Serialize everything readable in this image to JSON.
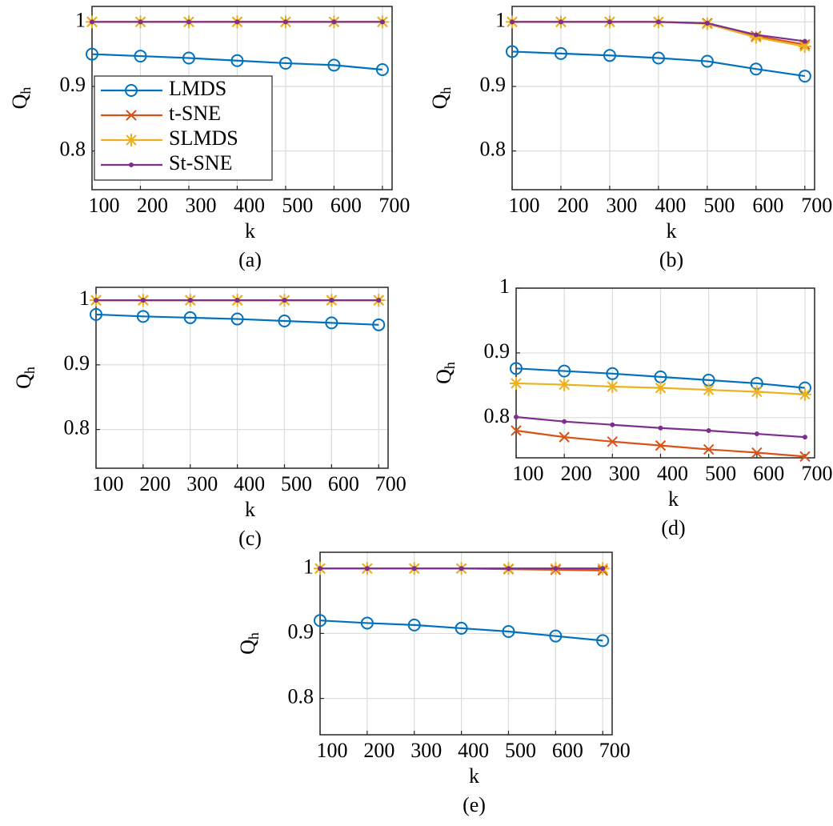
{
  "chart_data": [
    {
      "type": "line",
      "caption": "(a)",
      "xlabel": "k",
      "ylabel": "Q",
      "ylabel_subscript": "h",
      "legend": true,
      "legend_position": "left",
      "grid": true,
      "x": [
        100,
        200,
        300,
        400,
        500,
        600,
        700
      ],
      "xlim": [
        100,
        720
      ],
      "xticks": [
        100,
        200,
        300,
        400,
        500,
        600,
        700
      ],
      "ylim": [
        0.74,
        1.024
      ],
      "yticks": [
        0.8,
        0.9,
        1
      ],
      "series": [
        {
          "name": "LMDS",
          "color": "#0072BD",
          "marker": "circle",
          "values": [
            0.95,
            0.947,
            0.944,
            0.94,
            0.936,
            0.933,
            0.926
          ]
        },
        {
          "name": "t-SNE",
          "color": "#D95319",
          "marker": "x",
          "values": [
            1,
            1,
            1,
            1,
            1,
            1,
            1
          ]
        },
        {
          "name": "SLMDS",
          "color": "#EDB120",
          "marker": "star",
          "values": [
            1,
            1,
            1,
            1,
            1,
            1,
            1
          ]
        },
        {
          "name": "St-SNE",
          "color": "#7E2F8E",
          "marker": "dot",
          "values": [
            1,
            1,
            1,
            1,
            1,
            1,
            1
          ]
        }
      ]
    },
    {
      "type": "line",
      "caption": "(b)",
      "xlabel": "k",
      "ylabel": "Q",
      "ylabel_subscript": "h",
      "legend": false,
      "grid": true,
      "x": [
        100,
        200,
        300,
        400,
        500,
        600,
        700
      ],
      "xlim": [
        100,
        720
      ],
      "xticks": [
        100,
        200,
        300,
        400,
        500,
        600,
        700
      ],
      "ylim": [
        0.74,
        1.024
      ],
      "yticks": [
        0.8,
        0.9,
        1
      ],
      "series": [
        {
          "name": "LMDS",
          "color": "#0072BD",
          "marker": "circle",
          "values": [
            0.954,
            0.951,
            0.948,
            0.944,
            0.939,
            0.927,
            0.916
          ]
        },
        {
          "name": "t-SNE",
          "color": "#D95319",
          "marker": "x",
          "values": [
            1,
            1,
            1,
            1,
            0.998,
            0.978,
            0.965
          ]
        },
        {
          "name": "SLMDS",
          "color": "#EDB120",
          "marker": "star",
          "values": [
            1,
            1,
            1,
            1,
            0.997,
            0.976,
            0.962
          ]
        },
        {
          "name": "St-SNE",
          "color": "#7E2F8E",
          "marker": "dot",
          "values": [
            1,
            1,
            1,
            1,
            0.998,
            0.98,
            0.97
          ]
        }
      ]
    },
    {
      "type": "line",
      "caption": "(c)",
      "xlabel": "k",
      "ylabel": "Q",
      "ylabel_subscript": "h",
      "legend": false,
      "grid": true,
      "x": [
        100,
        200,
        300,
        400,
        500,
        600,
        700
      ],
      "xlim": [
        100,
        720
      ],
      "xticks": [
        100,
        200,
        300,
        400,
        500,
        600,
        700
      ],
      "ylim": [
        0.74,
        1.02
      ],
      "yticks": [
        0.8,
        0.9,
        1
      ],
      "series": [
        {
          "name": "LMDS",
          "color": "#0072BD",
          "marker": "circle",
          "values": [
            0.978,
            0.975,
            0.973,
            0.971,
            0.968,
            0.965,
            0.962
          ]
        },
        {
          "name": "t-SNE",
          "color": "#D95319",
          "marker": "x",
          "values": [
            1,
            1,
            1,
            1,
            1,
            1,
            1
          ]
        },
        {
          "name": "SLMDS",
          "color": "#EDB120",
          "marker": "star",
          "values": [
            1,
            1,
            1,
            1,
            1,
            1,
            1
          ]
        },
        {
          "name": "St-SNE",
          "color": "#7E2F8E",
          "marker": "dot",
          "values": [
            1,
            1,
            1,
            1,
            1,
            1,
            1
          ]
        }
      ]
    },
    {
      "type": "line",
      "caption": "(d)",
      "xlabel": "k",
      "ylabel": "Q",
      "ylabel_subscript": "h",
      "legend": false,
      "grid": true,
      "x": [
        100,
        200,
        300,
        400,
        500,
        600,
        700
      ],
      "xlim": [
        100,
        720
      ],
      "xticks": [
        100,
        200,
        300,
        400,
        500,
        600,
        700
      ],
      "ylim": [
        0.738,
        1
      ],
      "yticks": [
        0.8,
        0.9,
        1
      ],
      "series": [
        {
          "name": "LMDS",
          "color": "#0072BD",
          "marker": "circle",
          "values": [
            0.876,
            0.872,
            0.868,
            0.863,
            0.858,
            0.853,
            0.846
          ]
        },
        {
          "name": "t-SNE",
          "color": "#D95319",
          "marker": "x",
          "values": [
            0.78,
            0.77,
            0.763,
            0.757,
            0.751,
            0.746,
            0.74
          ]
        },
        {
          "name": "SLMDS",
          "color": "#EDB120",
          "marker": "star",
          "values": [
            0.853,
            0.851,
            0.848,
            0.846,
            0.843,
            0.84,
            0.836
          ]
        },
        {
          "name": "St-SNE",
          "color": "#7E2F8E",
          "marker": "dot",
          "values": [
            0.801,
            0.794,
            0.789,
            0.784,
            0.78,
            0.775,
            0.77
          ]
        }
      ]
    },
    {
      "type": "line",
      "caption": "(e)",
      "xlabel": "k",
      "ylabel": "Q",
      "ylabel_subscript": "h",
      "legend": false,
      "grid": true,
      "x": [
        100,
        200,
        300,
        400,
        500,
        600,
        700
      ],
      "xlim": [
        100,
        720
      ],
      "xticks": [
        100,
        200,
        300,
        400,
        500,
        600,
        700
      ],
      "ylim": [
        0.744,
        1.025
      ],
      "yticks": [
        0.8,
        0.9,
        1
      ],
      "series": [
        {
          "name": "LMDS",
          "color": "#0072BD",
          "marker": "circle",
          "values": [
            0.92,
            0.916,
            0.913,
            0.908,
            0.903,
            0.896,
            0.889
          ]
        },
        {
          "name": "t-SNE",
          "color": "#D95319",
          "marker": "x",
          "values": [
            1,
            1,
            1,
            1,
            0.999,
            0.998,
            0.997
          ]
        },
        {
          "name": "SLMDS",
          "color": "#EDB120",
          "marker": "star",
          "values": [
            1,
            1,
            1,
            1,
            1,
            1,
            1
          ]
        },
        {
          "name": "St-SNE",
          "color": "#7E2F8E",
          "marker": "dot",
          "values": [
            1,
            1,
            1,
            1,
            1,
            1,
            1
          ]
        }
      ]
    }
  ]
}
